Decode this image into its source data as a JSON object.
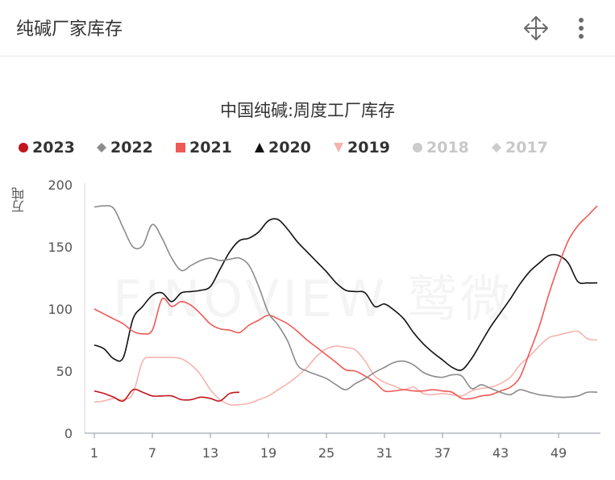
{
  "header": {
    "title": "纯碱厂家库存",
    "move_icon": "move-arrows-icon",
    "more_icon": "vertical-dots-icon"
  },
  "watermark": "FINOVIEW 鹫微",
  "chart_data": {
    "type": "line",
    "title": "中国纯碱:周度工厂库存",
    "ylabel": "万吨",
    "xlabel": "",
    "ylim": [
      0,
      200
    ],
    "xlim": [
      1,
      53
    ],
    "y_ticks": [
      0,
      50,
      100,
      150,
      200
    ],
    "x_ticks": [
      1,
      7,
      13,
      19,
      25,
      31,
      37,
      43,
      49
    ],
    "grid": false,
    "legend_position": "top",
    "series": [
      {
        "name": "2023",
        "color": "#c0161c",
        "marker": "circle",
        "visible": true,
        "points": [
          [
            1,
            34
          ],
          [
            2,
            32
          ],
          [
            3,
            29
          ],
          [
            4,
            26
          ],
          [
            5,
            35
          ],
          [
            6,
            33
          ],
          [
            7,
            30
          ],
          [
            8,
            30
          ],
          [
            9,
            30
          ],
          [
            10,
            27
          ],
          [
            11,
            27
          ],
          [
            12,
            29
          ],
          [
            13,
            28
          ],
          [
            14,
            26
          ],
          [
            15,
            32
          ],
          [
            16,
            33
          ]
        ]
      },
      {
        "name": "2022",
        "color": "#8c8c8c",
        "marker": "diamond",
        "visible": true,
        "points": [
          [
            1,
            182
          ],
          [
            2,
            183
          ],
          [
            3,
            181
          ],
          [
            4,
            165
          ],
          [
            5,
            150
          ],
          [
            6,
            151
          ],
          [
            7,
            168
          ],
          [
            8,
            157
          ],
          [
            9,
            141
          ],
          [
            10,
            131
          ],
          [
            11,
            135
          ],
          [
            12,
            139
          ],
          [
            13,
            141
          ],
          [
            14,
            139
          ],
          [
            15,
            140
          ],
          [
            16,
            141
          ],
          [
            17,
            135
          ],
          [
            18,
            118
          ],
          [
            19,
            97
          ],
          [
            20,
            87
          ],
          [
            21,
            74
          ],
          [
            22,
            55
          ],
          [
            23,
            50
          ],
          [
            24,
            47
          ],
          [
            25,
            44
          ],
          [
            26,
            39
          ],
          [
            27,
            35
          ],
          [
            28,
            40
          ],
          [
            29,
            44
          ],
          [
            30,
            49
          ],
          [
            31,
            53
          ],
          [
            32,
            57
          ],
          [
            33,
            58
          ],
          [
            34,
            55
          ],
          [
            35,
            49
          ],
          [
            36,
            46
          ],
          [
            37,
            45
          ],
          [
            38,
            47
          ],
          [
            39,
            46
          ],
          [
            40,
            36
          ],
          [
            41,
            39
          ],
          [
            42,
            36
          ],
          [
            43,
            33
          ],
          [
            44,
            31
          ],
          [
            45,
            35
          ],
          [
            46,
            33
          ],
          [
            47,
            31
          ],
          [
            48,
            30
          ],
          [
            49,
            29
          ],
          [
            50,
            29
          ],
          [
            51,
            30
          ],
          [
            52,
            33
          ],
          [
            53,
            33
          ]
        ]
      },
      {
        "name": "2021",
        "color": "#ef5a55",
        "marker": "square",
        "visible": true,
        "points": [
          [
            1,
            100
          ],
          [
            2,
            96
          ],
          [
            3,
            92
          ],
          [
            4,
            88
          ],
          [
            5,
            82
          ],
          [
            6,
            80
          ],
          [
            7,
            83
          ],
          [
            8,
            108
          ],
          [
            9,
            102
          ],
          [
            10,
            106
          ],
          [
            11,
            103
          ],
          [
            12,
            96
          ],
          [
            13,
            88
          ],
          [
            14,
            84
          ],
          [
            15,
            83
          ],
          [
            16,
            81
          ],
          [
            17,
            87
          ],
          [
            18,
            91
          ],
          [
            19,
            95
          ],
          [
            20,
            92
          ],
          [
            21,
            88
          ],
          [
            22,
            82
          ],
          [
            23,
            75
          ],
          [
            24,
            69
          ],
          [
            25,
            63
          ],
          [
            26,
            57
          ],
          [
            27,
            51
          ],
          [
            28,
            50
          ],
          [
            29,
            46
          ],
          [
            30,
            41
          ],
          [
            31,
            34
          ],
          [
            32,
            34
          ],
          [
            33,
            35
          ],
          [
            34,
            34
          ],
          [
            35,
            34
          ],
          [
            36,
            35
          ],
          [
            37,
            34
          ],
          [
            38,
            33
          ],
          [
            39,
            28
          ],
          [
            40,
            28
          ],
          [
            41,
            30
          ],
          [
            42,
            31
          ],
          [
            43,
            34
          ],
          [
            44,
            37
          ],
          [
            45,
            45
          ],
          [
            46,
            65
          ],
          [
            47,
            86
          ],
          [
            48,
            112
          ],
          [
            49,
            135
          ],
          [
            50,
            155
          ],
          [
            51,
            167
          ],
          [
            52,
            175
          ],
          [
            53,
            183
          ]
        ]
      },
      {
        "name": "2020",
        "color": "#111111",
        "marker": "triangle",
        "visible": true,
        "points": [
          [
            1,
            71
          ],
          [
            2,
            68
          ],
          [
            3,
            60
          ],
          [
            4,
            61
          ],
          [
            5,
            92
          ],
          [
            6,
            102
          ],
          [
            7,
            111
          ],
          [
            8,
            113
          ],
          [
            9,
            106
          ],
          [
            10,
            113
          ],
          [
            11,
            114
          ],
          [
            12,
            115
          ],
          [
            13,
            118
          ],
          [
            14,
            132
          ],
          [
            15,
            146
          ],
          [
            16,
            155
          ],
          [
            17,
            157
          ],
          [
            18,
            162
          ],
          [
            19,
            171
          ],
          [
            20,
            172
          ],
          [
            21,
            164
          ],
          [
            22,
            154
          ],
          [
            23,
            146
          ],
          [
            24,
            138
          ],
          [
            25,
            130
          ],
          [
            26,
            121
          ],
          [
            27,
            115
          ],
          [
            28,
            114
          ],
          [
            29,
            113
          ],
          [
            30,
            102
          ],
          [
            31,
            104
          ],
          [
            32,
            99
          ],
          [
            33,
            92
          ],
          [
            34,
            81
          ],
          [
            35,
            72
          ],
          [
            36,
            65
          ],
          [
            37,
            59
          ],
          [
            38,
            53
          ],
          [
            39,
            51
          ],
          [
            40,
            60
          ],
          [
            41,
            73
          ],
          [
            42,
            86
          ],
          [
            43,
            97
          ],
          [
            44,
            108
          ],
          [
            45,
            120
          ],
          [
            46,
            130
          ],
          [
            47,
            137
          ],
          [
            48,
            143
          ],
          [
            49,
            143
          ],
          [
            50,
            137
          ],
          [
            51,
            122
          ],
          [
            52,
            121
          ],
          [
            53,
            121
          ]
        ]
      },
      {
        "name": "2019",
        "color": "#f5b3ae",
        "marker": "triangle-down",
        "visible": true,
        "points": [
          [
            1,
            25
          ],
          [
            2,
            26
          ],
          [
            3,
            28
          ],
          [
            4,
            27
          ],
          [
            5,
            32
          ],
          [
            6,
            58
          ],
          [
            7,
            61
          ],
          [
            8,
            61
          ],
          [
            9,
            61
          ],
          [
            10,
            60
          ],
          [
            11,
            55
          ],
          [
            12,
            47
          ],
          [
            13,
            35
          ],
          [
            14,
            27
          ],
          [
            15,
            23
          ],
          [
            16,
            23
          ],
          [
            17,
            24
          ],
          [
            18,
            27
          ],
          [
            19,
            30
          ],
          [
            20,
            35
          ],
          [
            21,
            40
          ],
          [
            22,
            46
          ],
          [
            23,
            53
          ],
          [
            24,
            62
          ],
          [
            25,
            68
          ],
          [
            26,
            70
          ],
          [
            27,
            69
          ],
          [
            28,
            67
          ],
          [
            29,
            58
          ],
          [
            30,
            46
          ],
          [
            31,
            41
          ],
          [
            32,
            38
          ],
          [
            33,
            35
          ],
          [
            34,
            37
          ],
          [
            35,
            32
          ],
          [
            36,
            31
          ],
          [
            37,
            32
          ],
          [
            38,
            31
          ],
          [
            39,
            30
          ],
          [
            40,
            34
          ],
          [
            41,
            36
          ],
          [
            42,
            37
          ],
          [
            43,
            40
          ],
          [
            44,
            45
          ],
          [
            45,
            55
          ],
          [
            46,
            62
          ],
          [
            47,
            70
          ],
          [
            48,
            77
          ],
          [
            49,
            79
          ],
          [
            50,
            81
          ],
          [
            51,
            82
          ],
          [
            52,
            76
          ],
          [
            53,
            75
          ]
        ]
      },
      {
        "name": "2018",
        "color": "#cccccc",
        "marker": "circle",
        "visible": false,
        "points": []
      },
      {
        "name": "2017",
        "color": "#cccccc",
        "marker": "diamond",
        "visible": false,
        "points": []
      }
    ]
  }
}
